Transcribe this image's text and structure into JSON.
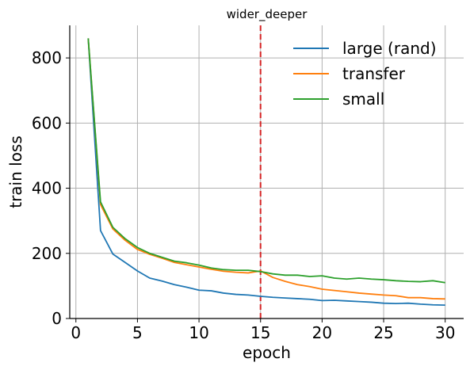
{
  "chart_data": {
    "type": "line",
    "title": "wider_deeper",
    "xlabel": "epoch",
    "ylabel": "train loss",
    "xlim": [
      -0.5,
      31.5
    ],
    "ylim": [
      0,
      900
    ],
    "xticks": [
      0,
      5,
      10,
      15,
      20,
      25,
      30
    ],
    "yticks": [
      0,
      200,
      400,
      600,
      800
    ],
    "grid": true,
    "legend_position": "top-right",
    "vline": {
      "x": 15,
      "color": "#d62728",
      "style": "dashed"
    },
    "series": [
      {
        "name": "large (rand)",
        "color": "#1f77b4",
        "x": [
          1,
          2,
          3,
          4,
          5,
          6,
          7,
          8,
          9,
          10,
          11,
          12,
          13,
          14,
          15,
          16,
          17,
          18,
          19,
          20,
          21,
          22,
          23,
          24,
          25,
          26,
          27,
          28,
          29,
          30
        ],
        "values": [
          860,
          270,
          198,
          172,
          146,
          124,
          115,
          104,
          96,
          87,
          85,
          78,
          74,
          72,
          68,
          65,
          63,
          61,
          59,
          55,
          56,
          54,
          52,
          50,
          47,
          46,
          47,
          44,
          42,
          41
        ]
      },
      {
        "name": "transfer",
        "color": "#ff7f0e",
        "x": [
          1,
          2,
          3,
          4,
          5,
          6,
          7,
          8,
          9,
          10,
          11,
          12,
          13,
          14,
          15,
          16,
          17,
          18,
          19,
          20,
          21,
          22,
          23,
          24,
          25,
          26,
          27,
          28,
          29,
          30
        ],
        "values": [
          860,
          350,
          275,
          240,
          212,
          197,
          185,
          172,
          165,
          158,
          151,
          145,
          142,
          140,
          146,
          126,
          114,
          104,
          98,
          90,
          86,
          82,
          78,
          75,
          72,
          70,
          64,
          64,
          61,
          60
        ]
      },
      {
        "name": "small",
        "color": "#2ca02c",
        "x": [
          1,
          2,
          3,
          4,
          5,
          6,
          7,
          8,
          9,
          10,
          11,
          12,
          13,
          14,
          15,
          16,
          17,
          18,
          19,
          20,
          21,
          22,
          23,
          24,
          25,
          26,
          27,
          28,
          29,
          30
        ],
        "values": [
          860,
          358,
          280,
          245,
          218,
          200,
          188,
          176,
          171,
          164,
          155,
          150,
          148,
          148,
          144,
          137,
          133,
          133,
          129,
          131,
          124,
          121,
          124,
          121,
          119,
          116,
          114,
          113,
          116,
          110
        ]
      }
    ]
  }
}
